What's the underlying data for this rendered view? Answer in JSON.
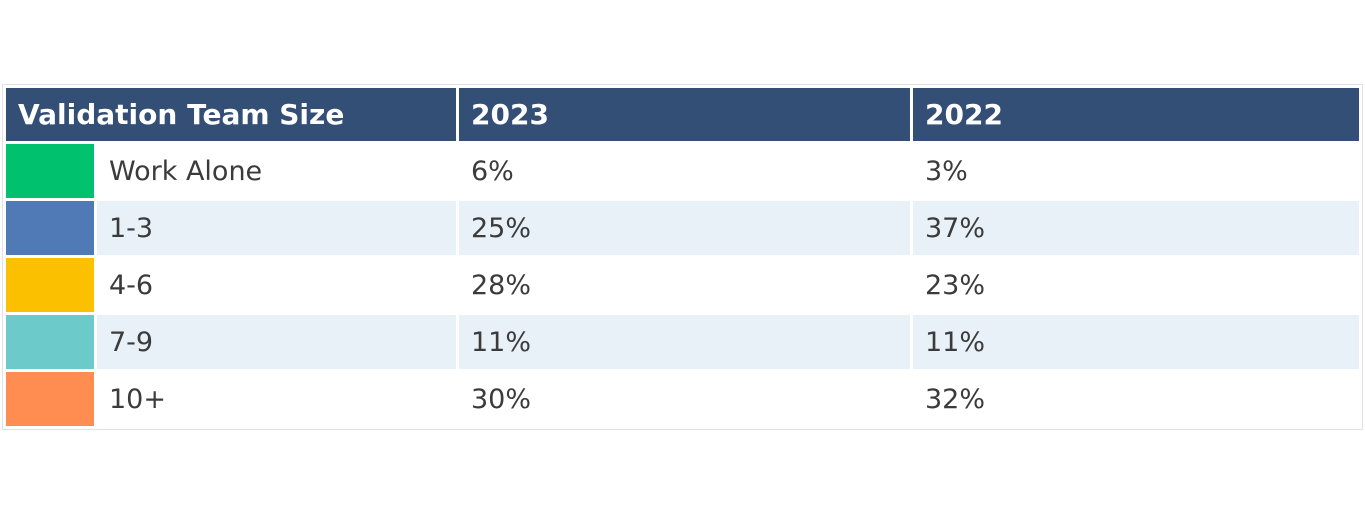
{
  "chart_data": {
    "type": "table",
    "columns": [
      "Validation Team Size",
      "2023",
      "2022"
    ],
    "rows": [
      {
        "label": "Work Alone",
        "color": "#00c16e",
        "values": [
          "6%",
          "3%"
        ]
      },
      {
        "label": "1-3",
        "color": "#4f7ab5",
        "values": [
          "25%",
          "37%"
        ]
      },
      {
        "label": "4-6",
        "color": "#fbc000",
        "values": [
          "28%",
          "23%"
        ]
      },
      {
        "label": "7-9",
        "color": "#6ccaca",
        "values": [
          "11%",
          "11%"
        ]
      },
      {
        "label": "10+",
        "color": "#ff8c50",
        "values": [
          "30%",
          "32%"
        ]
      }
    ]
  },
  "colors": {
    "header_bg": "#344f75",
    "alt_row_bg": "#e8f0f8"
  }
}
